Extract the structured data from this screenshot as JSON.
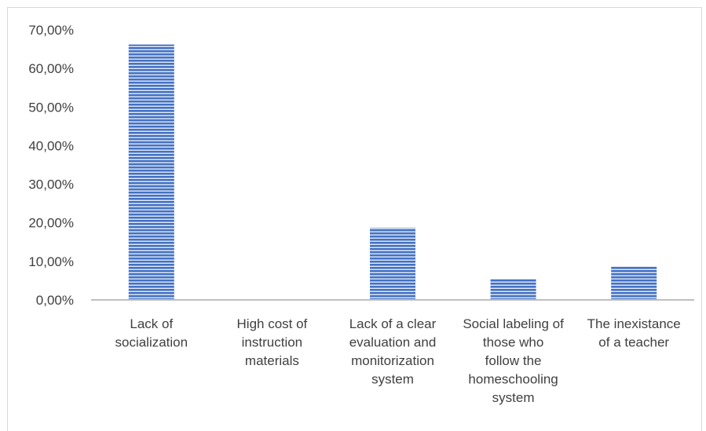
{
  "chart_data": {
    "type": "bar",
    "categories": [
      [
        "Lack of",
        "socialization"
      ],
      [
        "High cost of",
        "instruction",
        "materials"
      ],
      [
        "Lack of a clear",
        "evaluation and",
        "monitorization",
        "system"
      ],
      [
        "Social labeling of",
        "those who",
        "follow the",
        "homeschooling",
        "system"
      ],
      [
        "The inexistance",
        "of a teacher"
      ]
    ],
    "values": [
      66.2,
      0,
      18.7,
      5.5,
      8.7
    ],
    "ylim": [
      0,
      70
    ],
    "yticks": [
      0,
      10,
      20,
      30,
      40,
      50,
      60,
      70
    ],
    "ytick_labels": [
      "0,00%",
      "10,00%",
      "20,00%",
      "30,00%",
      "40,00%",
      "50,00%",
      "60,00%",
      "70,00%"
    ],
    "title": "",
    "xlabel": "",
    "ylabel": "",
    "grid": false,
    "legend": "none",
    "colors": {
      "bar": "#4472c4",
      "bar_stripe": "#ffffff",
      "axis": "#bfbfbf",
      "text": "#404040"
    }
  }
}
